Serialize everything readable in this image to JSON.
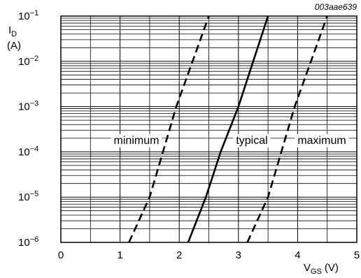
{
  "chart_data": {
    "type": "line",
    "figure_id": "003aae639",
    "xlabel": {
      "main": "V",
      "sub": "GS",
      "unit": "(V)"
    },
    "ylabel": {
      "main": "I",
      "sub": "D",
      "unit": "(A)"
    },
    "x_scale": "linear",
    "y_scale": "log",
    "xlim": [
      0,
      5
    ],
    "ylim": [
      1e-06,
      0.1
    ],
    "x_ticks": [
      "0",
      "1",
      "2",
      "3",
      "4",
      "5"
    ],
    "y_ticks": [
      {
        "base": "10",
        "exp": "−6"
      },
      {
        "base": "10",
        "exp": "−5"
      },
      {
        "base": "10",
        "exp": "−4"
      },
      {
        "base": "10",
        "exp": "−3"
      },
      {
        "base": "10",
        "exp": "−2"
      },
      {
        "base": "10",
        "exp": "−1"
      }
    ],
    "grid": true,
    "series": [
      {
        "name": "minimum",
        "style": "dashed",
        "x": [
          1.15,
          1.5,
          1.95,
          2.5
        ],
        "y": [
          1e-06,
          1e-05,
          0.001,
          0.1
        ]
      },
      {
        "name": "typical",
        "style": "solid",
        "x": [
          2.15,
          2.45,
          2.7,
          3.0,
          3.25,
          3.5
        ],
        "y": [
          1e-06,
          1e-05,
          0.0001,
          0.001,
          0.01,
          0.1
        ]
      },
      {
        "name": "maximum",
        "style": "dashed",
        "x": [
          3.15,
          3.5,
          3.95,
          4.5
        ],
        "y": [
          1e-06,
          1e-05,
          0.001,
          0.1
        ]
      }
    ]
  }
}
